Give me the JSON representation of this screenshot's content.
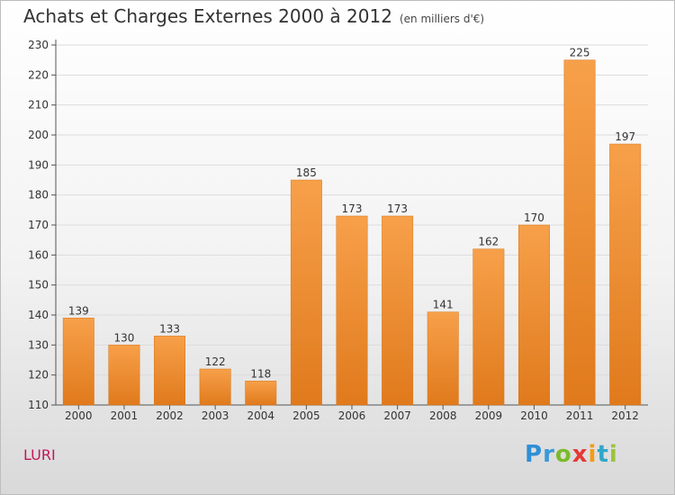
{
  "title": "Achats et Charges Externes 2000 à 2012",
  "subtitle": "(en milliers d'€)",
  "place": "LURI",
  "logo": {
    "letters": [
      "P",
      "r",
      "o",
      "x",
      "i",
      "t",
      "i"
    ],
    "colors": [
      "#2f8fd6",
      "#3a9ad9",
      "#7cbb2a",
      "#e53935",
      "#f39c12",
      "#2fa7c9",
      "#9bc43a"
    ]
  },
  "colors": {
    "bar_top": "#f7a04a",
    "bar_bottom": "#e07a1c",
    "axis": "#555555",
    "grid": "#dcdcdc"
  },
  "chart_data": {
    "type": "bar",
    "categories": [
      "2000",
      "2001",
      "2002",
      "2003",
      "2004",
      "2005",
      "2006",
      "2007",
      "2008",
      "2009",
      "2010",
      "2011",
      "2012"
    ],
    "values": [
      139,
      130,
      133,
      122,
      118,
      185,
      173,
      173,
      141,
      162,
      170,
      225,
      197
    ],
    "yticks": [
      110,
      120,
      130,
      140,
      150,
      160,
      170,
      180,
      190,
      200,
      210,
      220,
      230
    ],
    "ylim": [
      110,
      230
    ],
    "grid": true
  }
}
